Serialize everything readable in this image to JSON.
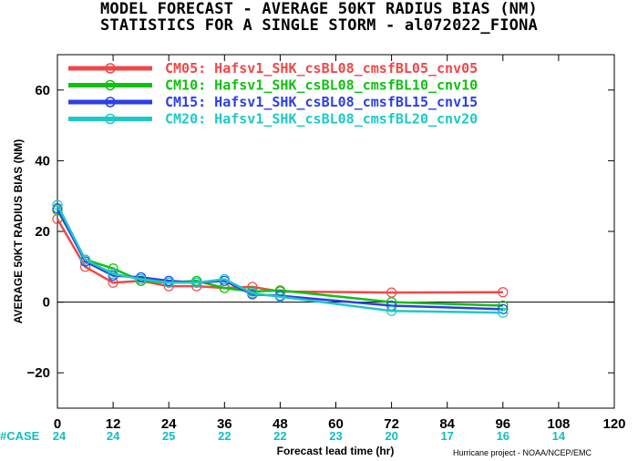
{
  "chart_data": {
    "type": "line",
    "title": "MODEL FORECAST - AVERAGE 50KT RADIUS BIAS (NM)",
    "subtitle": "STATISTICS FOR A SINGLE STORM - al072022_FIONA",
    "xlabel": "Forecast lead time (hr)",
    "ylabel": "AVERAGE 50KT RADIUS BIAS (NM)",
    "xlim": [
      0,
      120
    ],
    "ylim": [
      -30,
      70
    ],
    "x_ticks": [
      0,
      12,
      24,
      36,
      48,
      60,
      72,
      84,
      96,
      108,
      120
    ],
    "y_ticks": [
      -20,
      0,
      20,
      40,
      60
    ],
    "x_tick_labels": [
      "0",
      "12",
      "24",
      "36",
      "48",
      "60",
      "72",
      "84",
      "96",
      "108",
      "120"
    ],
    "y_tick_labels": [
      "−20",
      "0",
      "20",
      "40",
      "60"
    ],
    "legend_position": "top",
    "case_label": "#CASE",
    "case_counts": [
      {
        "x": 0,
        "label": "24"
      },
      {
        "x": 12,
        "label": "24"
      },
      {
        "x": 24,
        "label": "25"
      },
      {
        "x": 36,
        "label": "22"
      },
      {
        "x": 48,
        "label": "22"
      },
      {
        "x": 60,
        "label": "23"
      },
      {
        "x": 72,
        "label": "20"
      },
      {
        "x": 84,
        "label": "17"
      },
      {
        "x": 96,
        "label": "16"
      },
      {
        "x": 108,
        "label": "14"
      }
    ],
    "series": [
      {
        "name": "CM05: Hafsv1_SHK_csBL08_cmsfBL05_cnv05",
        "color": "#f04848",
        "x": [
          0,
          6,
          12,
          18,
          24,
          30,
          36,
          42,
          48,
          72,
          96
        ],
        "y": [
          23.5,
          10,
          5.5,
          6,
          4.5,
          4.5,
          4,
          4.3,
          3,
          2.7,
          2.8
        ]
      },
      {
        "name": "CM10: Hafsv1_SHK_csBL08_cmsfBL10_cnv10",
        "color": "#11c011",
        "x": [
          0,
          6,
          12,
          18,
          24,
          30,
          36,
          42,
          48,
          72,
          96
        ],
        "y": [
          26,
          12,
          9.5,
          6,
          5.5,
          6,
          4,
          3,
          3.3,
          0,
          -1
        ]
      },
      {
        "name": "CM15: Hafsv1_SHK_csBL08_cmsfBL15_cnv15",
        "color": "#2c3fe8",
        "x": [
          0,
          6,
          12,
          18,
          24,
          30,
          36,
          42,
          48,
          72,
          96
        ],
        "y": [
          26.5,
          11.5,
          7.5,
          7,
          6,
          5.5,
          6,
          2.2,
          1.8,
          -1,
          -2
        ]
      },
      {
        "name": "CM20: Hafsv1_SHK_csBL08_cmsfBL20_cnv20",
        "color": "#1ec8c8",
        "x": [
          0,
          6,
          12,
          18,
          24,
          30,
          36,
          42,
          48,
          72,
          96
        ],
        "y": [
          27.5,
          12,
          8,
          6.5,
          5.5,
          5.5,
          6.5,
          2.5,
          1.5,
          -2.5,
          -3
        ]
      }
    ],
    "zero_line": true
  },
  "credit": "Hurricane project - NOAA/NCEP/EMC"
}
